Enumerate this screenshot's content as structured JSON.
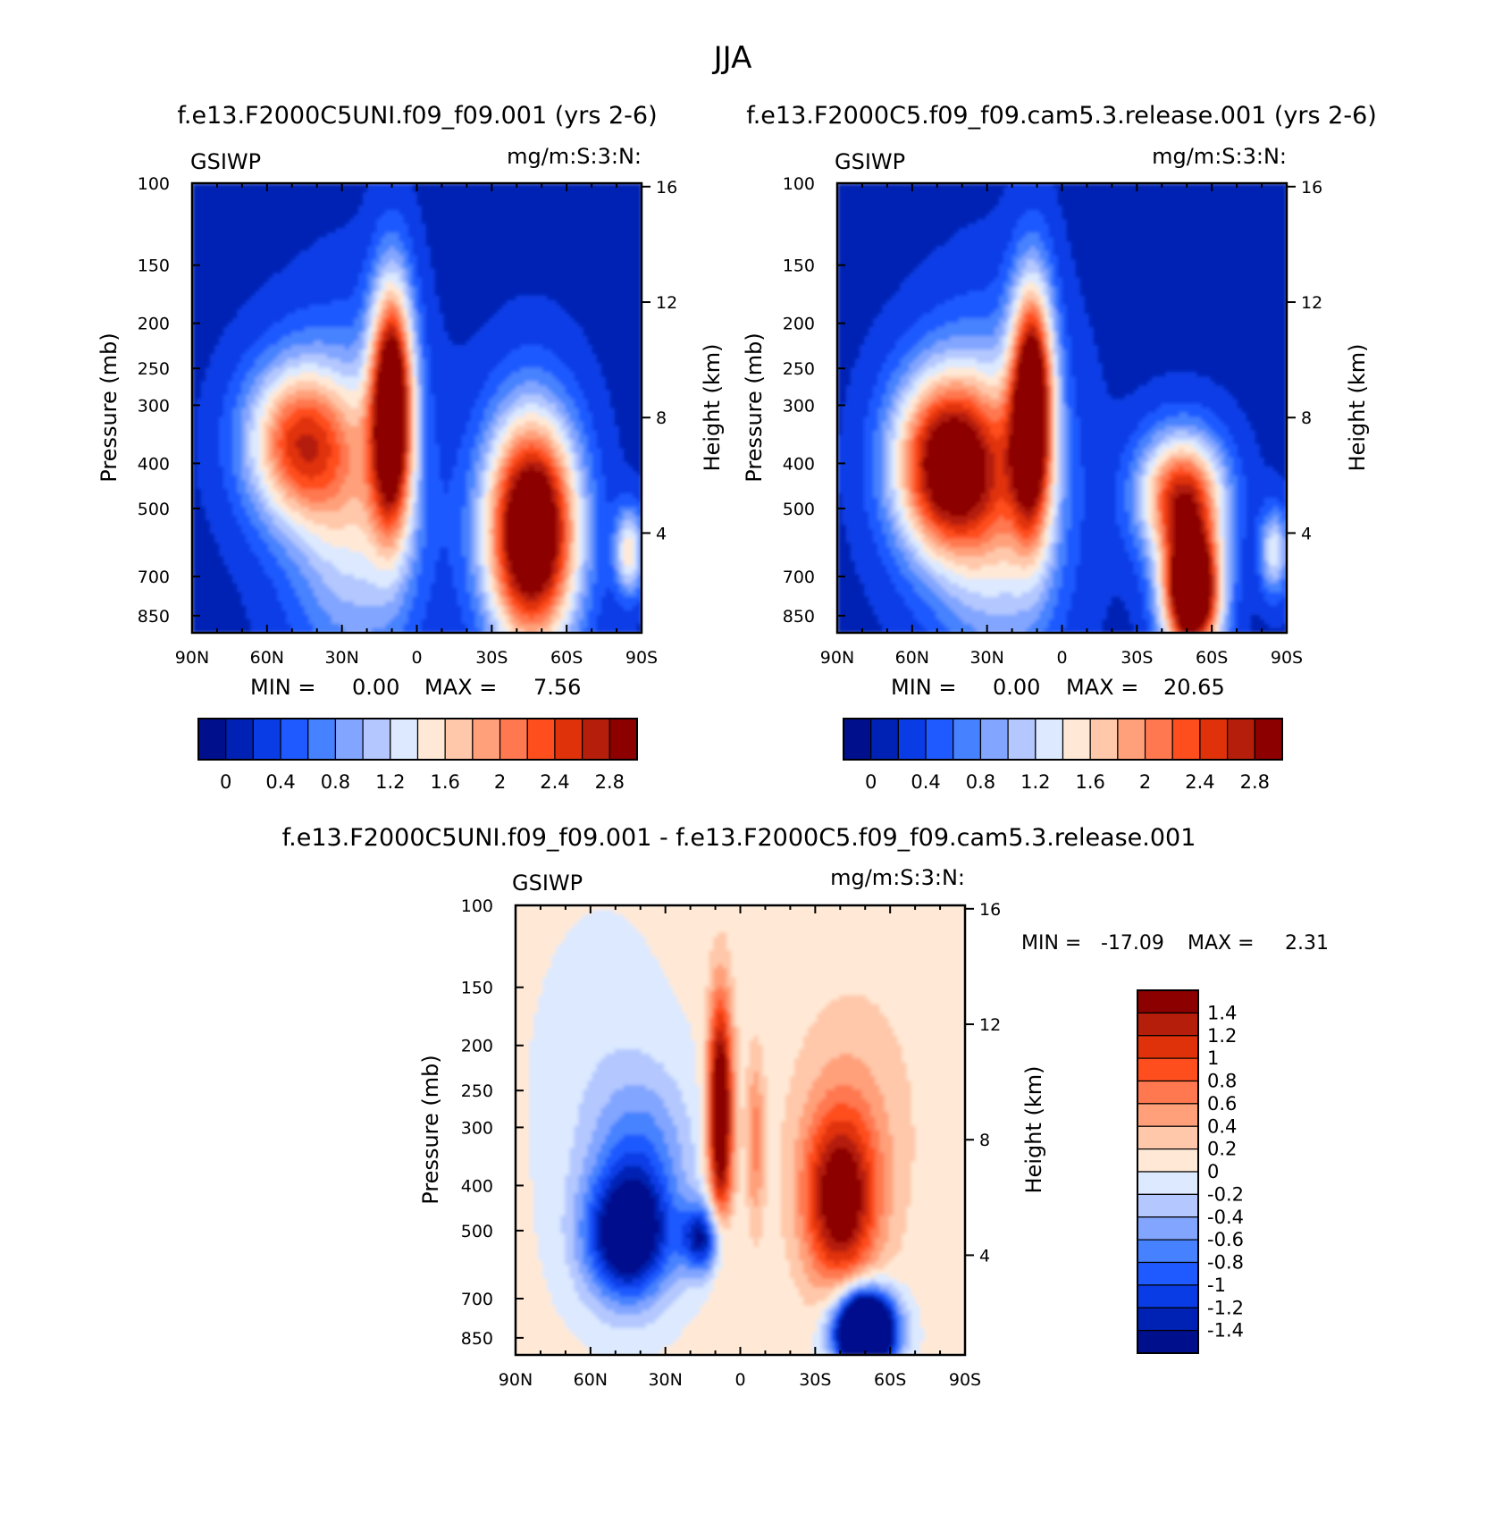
{
  "main_title": "JJA",
  "panel_titles": {
    "p1": "f.e13.F2000C5UNI.f09_f09.001 (yrs 2-6)",
    "p2": "f.e13.F2000C5.f09_f09.cam5.3.release.001 (yrs 2-6)",
    "p3": "f.e13.F2000C5UNI.f09_f09.001 - f.e13.F2000C5.f09_f09.cam5.3.release.001"
  },
  "units_label": "mg/m:S:3:N:",
  "variable_label": "GSIWP",
  "stats": {
    "p1": {
      "min_label": "MIN =",
      "min": "0.00",
      "max_label": "MAX =",
      "max": "7.56"
    },
    "p2": {
      "min_label": "MIN =",
      "min": "0.00",
      "max_label": "MAX =",
      "max": "20.65"
    },
    "p3": {
      "min_label": "MIN =",
      "min": "-17.09",
      "max_label": "MAX =",
      "max": "2.31"
    }
  },
  "colors": {
    "field_scale": [
      "#000f8c",
      "#0022b4",
      "#0a3ce6",
      "#1e5aff",
      "#4682ff",
      "#82a5ff",
      "#b4c8ff",
      "#dce9ff",
      "#ffe9d6",
      "#ffc8aa",
      "#ffa07a",
      "#ff7850",
      "#ff4e1e",
      "#e0320a",
      "#b41e0a",
      "#8c0000"
    ],
    "diff_scale": [
      "#000f8c",
      "#0022b4",
      "#0a3ce6",
      "#1e5aff",
      "#4682ff",
      "#82a5ff",
      "#b4c8ff",
      "#dce9ff",
      "#ffe9d6",
      "#ffc8aa",
      "#ffa07a",
      "#ff7850",
      "#ff4e1e",
      "#e0320a",
      "#b41e0a",
      "#8c0000"
    ]
  },
  "chart_data": [
    {
      "type": "heatmap",
      "title": "f.e13.F2000C5UNI.f09_f09.001 (yrs 2-6)",
      "variable": "GSIWP",
      "units": "mg/m:S:3:N:",
      "xlabel": "",
      "ylabel": "Pressure (mb)",
      "y2label": "Height (km)",
      "x_ticks": [
        "90N",
        "60N",
        "30N",
        "0",
        "30S",
        "60S",
        "90S"
      ],
      "y_ticks": [
        "100",
        "150",
        "200",
        "250",
        "300",
        "400",
        "500",
        "700",
        "850"
      ],
      "y2_ticks": [
        "16",
        "12",
        "8",
        "4"
      ],
      "ylim": [
        100,
        925
      ],
      "xlim": [
        90,
        -90
      ],
      "min": 0.0,
      "max": 7.56,
      "colorbar_ticks": [
        "0",
        "0.4",
        "0.8",
        "1.2",
        "1.6",
        "2",
        "2.4",
        "2.8"
      ],
      "features": [
        {
          "name": "tropical upper maximum",
          "lat": 10,
          "p_range": [
            175,
            550
          ],
          "value": 2.8
        },
        {
          "name": "NH midlatitude lobe",
          "lat": 50,
          "p_range": [
            300,
            480
          ],
          "value": 2.0
        },
        {
          "name": "SH midlatitude maximum",
          "lat": -47,
          "p_range": [
            380,
            870
          ],
          "value": 2.8
        }
      ]
    },
    {
      "type": "heatmap",
      "title": "f.e13.F2000C5.f09_f09.cam5.3.release.001 (yrs 2-6)",
      "variable": "GSIWP",
      "units": "mg/m:S:3:N:",
      "xlabel": "",
      "ylabel": "Pressure (mb)",
      "y2label": "Height (km)",
      "x_ticks": [
        "90N",
        "60N",
        "30N",
        "0",
        "30S",
        "60S",
        "90S"
      ],
      "y_ticks": [
        "100",
        "150",
        "200",
        "250",
        "300",
        "400",
        "500",
        "700",
        "850"
      ],
      "y2_ticks": [
        "16",
        "12",
        "8",
        "4"
      ],
      "ylim": [
        100,
        925
      ],
      "xlim": [
        90,
        -90
      ],
      "min": 0.0,
      "max": 20.65,
      "colorbar_ticks": [
        "0",
        "0.4",
        "0.8",
        "1.2",
        "1.6",
        "2",
        "2.4",
        "2.8"
      ],
      "features": [
        {
          "name": "tropical upper maximum",
          "lat": 10,
          "p_range": [
            185,
            550
          ],
          "value": 2.8
        },
        {
          "name": "NH midlatitude lobe",
          "lat": 50,
          "p_range": [
            300,
            520
          ],
          "value": 2.6
        },
        {
          "name": "SH low-level maximum",
          "lat": -52,
          "p_range": [
            580,
            900
          ],
          "value": 2.8
        },
        {
          "name": "SH mid-level lobe",
          "lat": -50,
          "p_range": [
            380,
            560
          ],
          "value": 2.4
        }
      ]
    },
    {
      "type": "heatmap",
      "title": "f.e13.F2000C5UNI.f09_f09.001 - f.e13.F2000C5.f09_f09.cam5.3.release.001",
      "variable": "GSIWP",
      "units": "mg/m:S:3:N:",
      "xlabel": "",
      "ylabel": "Pressure (mb)",
      "y2label": "Height (km)",
      "x_ticks": [
        "90N",
        "60N",
        "30N",
        "0",
        "30S",
        "60S",
        "90S"
      ],
      "y_ticks": [
        "100",
        "150",
        "200",
        "250",
        "300",
        "400",
        "500",
        "700",
        "850"
      ],
      "y2_ticks": [
        "16",
        "12",
        "8",
        "4"
      ],
      "ylim": [
        100,
        925
      ],
      "xlim": [
        90,
        -90
      ],
      "min": -17.09,
      "max": 2.31,
      "colorbar_ticks": [
        "1.4",
        "1.2",
        "1",
        "0.8",
        "0.6",
        "0.4",
        "0.2",
        "0",
        "-0.2",
        "-0.4",
        "-0.6",
        "-0.8",
        "-1",
        "-1.2",
        "-1.4"
      ],
      "features": [
        {
          "name": "tropical positive difference",
          "lat": 8,
          "p_range": [
            180,
            520
          ],
          "value": 1.4
        },
        {
          "name": "NH midlatitude negative difference",
          "lat": 45,
          "p_range": [
            350,
            700
          ],
          "value": -1.4
        },
        {
          "name": "SH mid-level positive difference",
          "lat": -45,
          "p_range": [
            300,
            600
          ],
          "value": 1.2
        },
        {
          "name": "SH low-level negative difference",
          "lat": -52,
          "p_range": [
            640,
            925
          ],
          "value": -1.4
        }
      ]
    }
  ]
}
